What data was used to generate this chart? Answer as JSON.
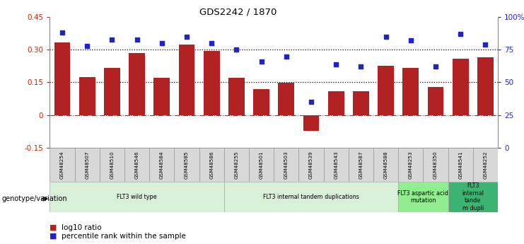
{
  "title": "GDS2242 / 1870",
  "samples": [
    "GSM48254",
    "GSM48507",
    "GSM48510",
    "GSM48546",
    "GSM48584",
    "GSM48585",
    "GSM48586",
    "GSM48255",
    "GSM48501",
    "GSM48503",
    "GSM48539",
    "GSM48543",
    "GSM48587",
    "GSM48588",
    "GSM48253",
    "GSM48350",
    "GSM48541",
    "GSM48252"
  ],
  "log10_ratio": [
    0.335,
    0.175,
    0.215,
    0.285,
    0.17,
    0.325,
    0.295,
    0.17,
    0.12,
    0.148,
    -0.072,
    0.11,
    0.11,
    0.225,
    0.215,
    0.128,
    0.26,
    0.265
  ],
  "percentile_rank": [
    88,
    78,
    83,
    83,
    80,
    85,
    80,
    75,
    66,
    70,
    35,
    64,
    62,
    85,
    82,
    62,
    87,
    79
  ],
  "ylim_left": [
    -0.15,
    0.45
  ],
  "ylim_right": [
    0,
    100
  ],
  "yticks_left": [
    -0.15,
    0.0,
    0.15,
    0.3,
    0.45
  ],
  "ytick_labels_left": [
    "-0.15",
    "0",
    "0.15",
    "0.30",
    "0.45"
  ],
  "yticks_right": [
    0,
    25,
    50,
    75,
    100
  ],
  "ytick_labels_right": [
    "0",
    "25",
    "50",
    "75",
    "100%"
  ],
  "bar_color": "#b22222",
  "dot_color": "#2222cc",
  "groups": [
    {
      "label": "FLT3 wild type",
      "start": 0,
      "end": 7,
      "color": "#d8f0d8"
    },
    {
      "label": "FLT3 internal tandem duplications",
      "start": 7,
      "end": 14,
      "color": "#d8f0d8"
    },
    {
      "label": "FLT3 aspartic acid\nmutation",
      "start": 14,
      "end": 16,
      "color": "#90ee90"
    },
    {
      "label": "FLT3\ninternal\ntande\nm dupli",
      "start": 16,
      "end": 18,
      "color": "#3cb371"
    }
  ],
  "hline_color": "#cc2200",
  "dotted_line_color": "#000000",
  "left_axis_color": "#cc2200",
  "right_axis_color": "#2222cc",
  "genotype_label": "genotype/variation",
  "legend_bar_label": "log10 ratio",
  "legend_dot_label": "percentile rank within the sample",
  "figsize": [
    7.41,
    3.45
  ],
  "dpi": 100
}
